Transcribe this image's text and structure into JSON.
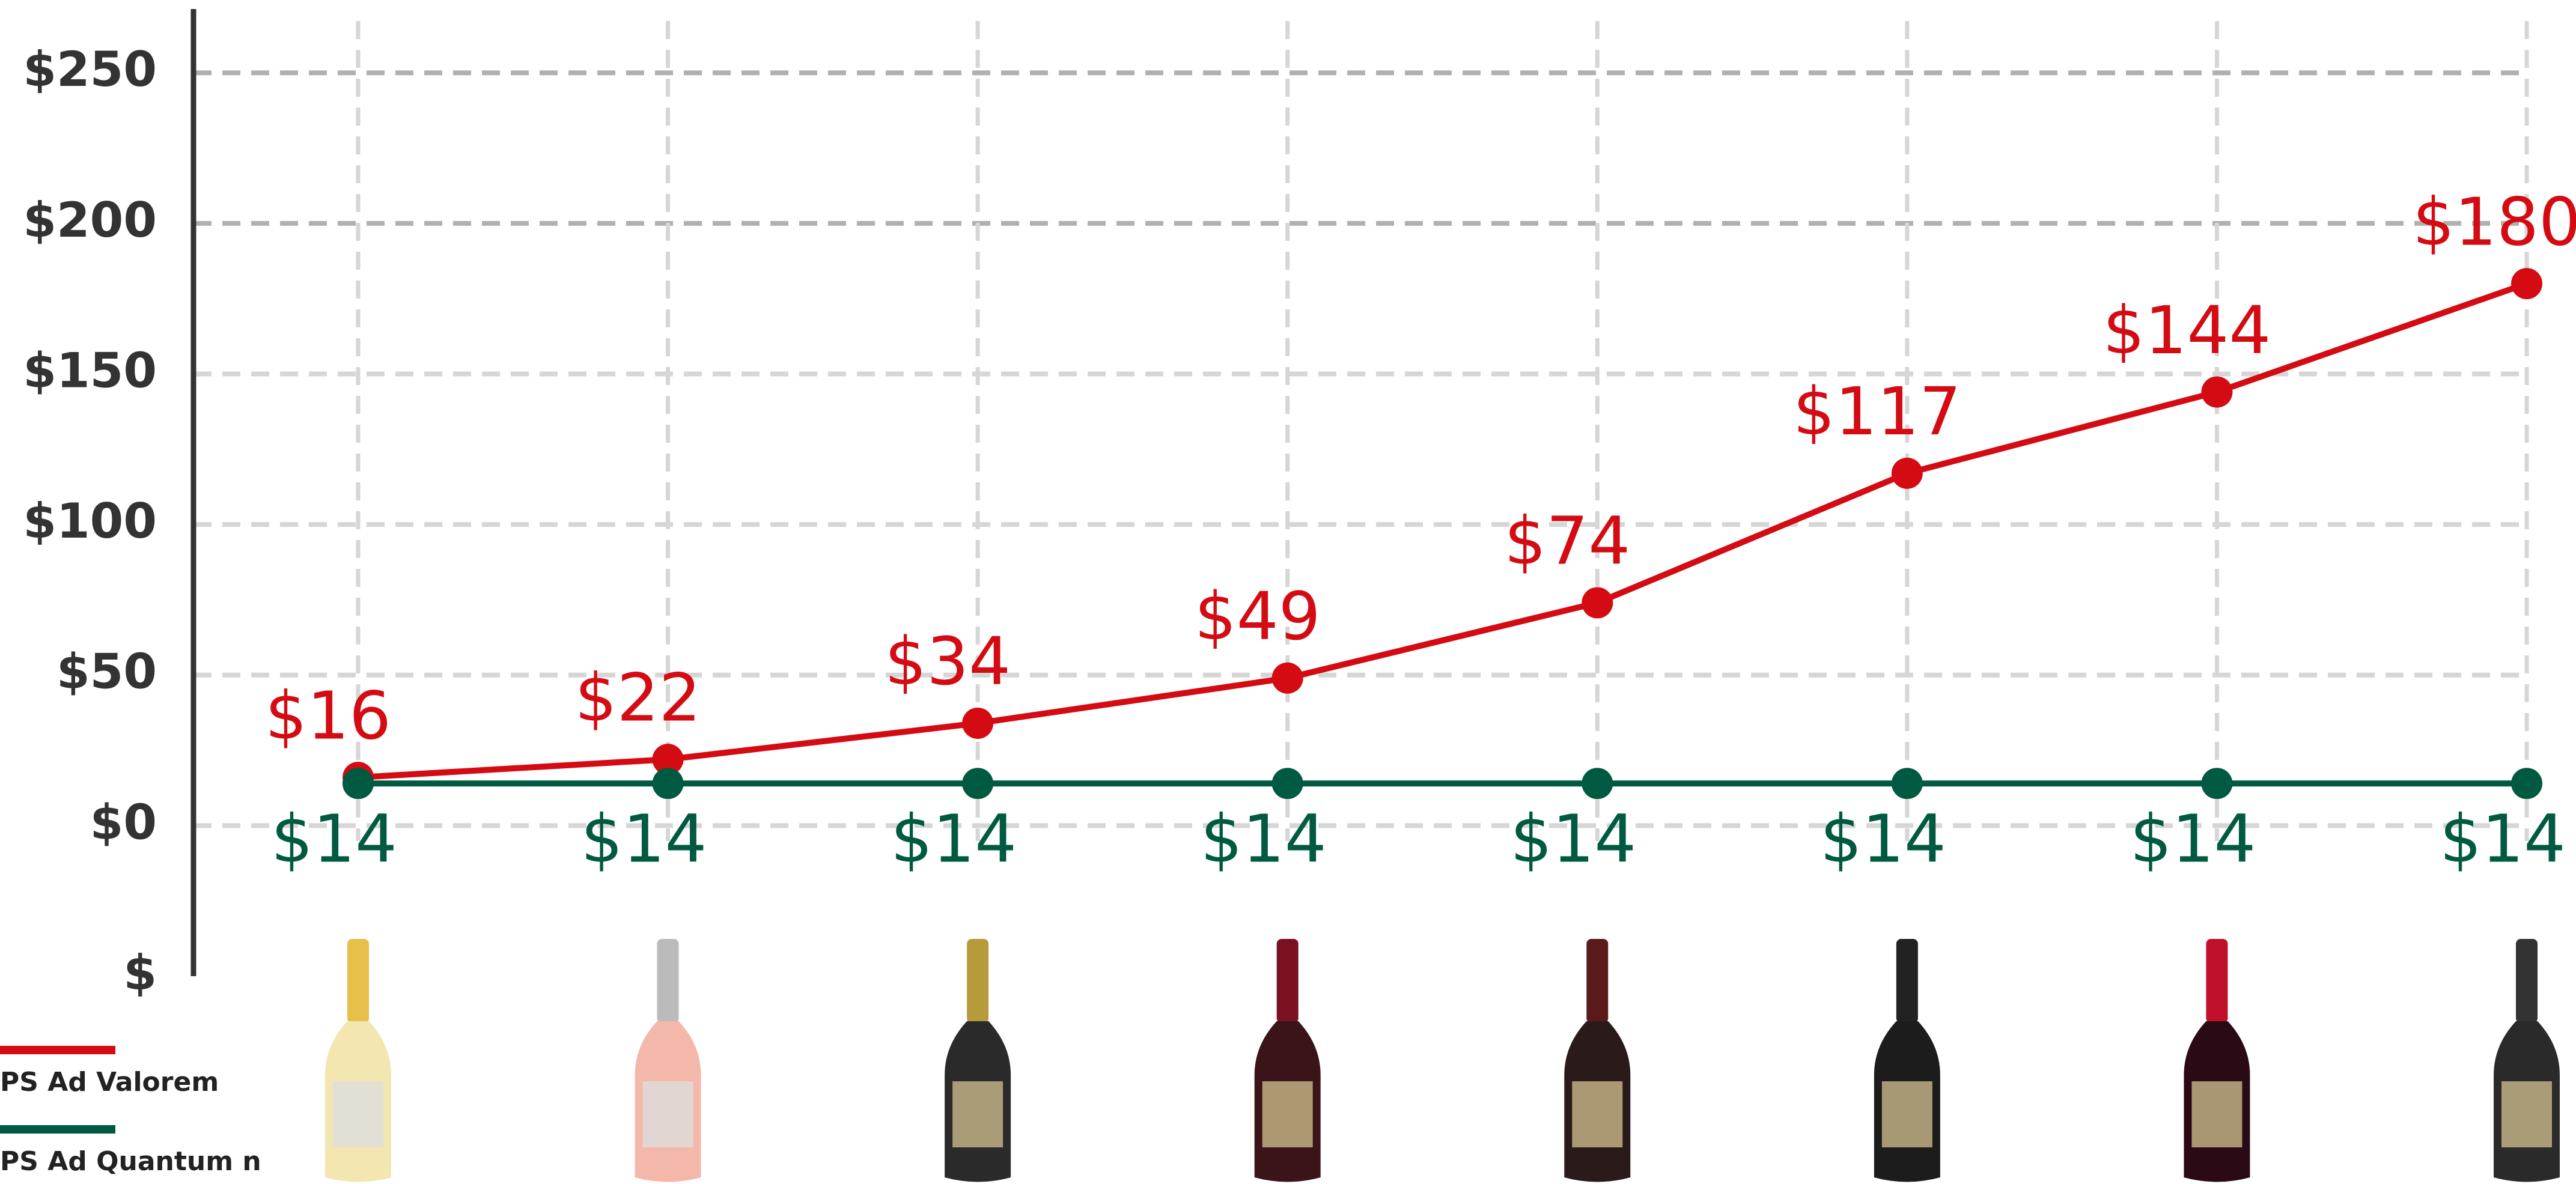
{
  "chart_data": {
    "type": "line",
    "categories": [
      null,
      null,
      null,
      null,
      null,
      null,
      null,
      null
    ],
    "series": [
      {
        "name": "PS Ad Valorem",
        "color": "#d40b12",
        "values": [
          16,
          22,
          34,
          49,
          74,
          117,
          144,
          180
        ],
        "value_labels": [
          "$16",
          "$22",
          "$34",
          "$49",
          "$74",
          "$117",
          "$144",
          "$180"
        ]
      },
      {
        "name": "PS Ad Quantum n",
        "color": "#005a41",
        "values": [
          14,
          14,
          14,
          14,
          14,
          14,
          14,
          14
        ],
        "value_labels": [
          "$14",
          "$14",
          "$14",
          "$14",
          "$14",
          "$14",
          "$14",
          "$14"
        ]
      }
    ],
    "ylim": [
      -50,
      270
    ],
    "yticks": [
      {
        "value": -50,
        "label": "$"
      },
      {
        "value": 0,
        "label": "$0"
      },
      {
        "value": 50,
        "label": "$50"
      },
      {
        "value": 100,
        "label": "$100"
      },
      {
        "value": 150,
        "label": "$150"
      },
      {
        "value": 200,
        "label": "$200"
      },
      {
        "value": 250,
        "label": "$250"
      }
    ],
    "grid": true
  }
}
